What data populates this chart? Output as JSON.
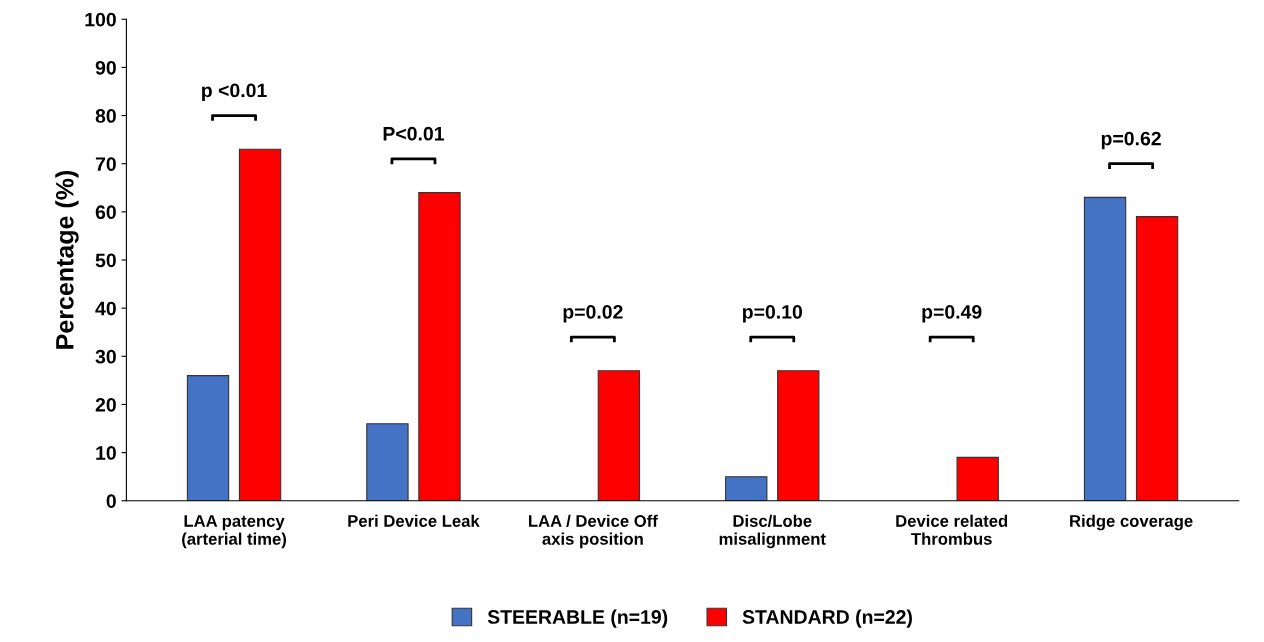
{
  "chart_data": {
    "type": "bar",
    "ylabel": "Percentage (%)",
    "categories": [
      "LAA patency\n(arterial time)",
      "Peri Device Leak",
      "LAA / Device Off\naxis position",
      "Disc/Lobe\nmisalignment",
      "Device related\nThrombus",
      "Ridge coverage"
    ],
    "series": [
      {
        "name": "STEERABLE (n=19)",
        "color": "#4472c4",
        "values": [
          26,
          16,
          0,
          5,
          0,
          63
        ]
      },
      {
        "name": "STANDARD (n=22)",
        "color": "#ff0000",
        "values": [
          73,
          64,
          27,
          27,
          9,
          59
        ]
      }
    ],
    "ylim": [
      0,
      100
    ],
    "yticks": [
      0,
      10,
      20,
      30,
      40,
      50,
      60,
      70,
      80,
      90,
      100
    ],
    "annotations": [
      "p <0.01",
      "P<0.01",
      "p=0.02",
      "p=0.10",
      "p=0.49",
      "p=0.62"
    ],
    "grid": false,
    "legend": "bottom"
  }
}
